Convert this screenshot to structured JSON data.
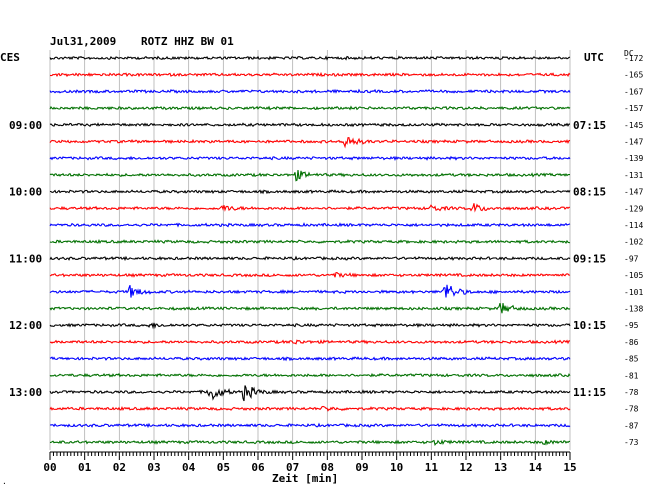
{
  "header": {
    "date": "Jul31,2009",
    "station": "ROTZ HHZ BW 01",
    "left_tz": "CES",
    "right_tz": "UTC",
    "dc_label": "DC"
  },
  "chart_data": {
    "type": "line",
    "xlabel": "Zeit [min]",
    "xlim": [
      0,
      15
    ],
    "x_ticks": [
      "00",
      "01",
      "02",
      "03",
      "04",
      "05",
      "06",
      "07",
      "08",
      "09",
      "10",
      "11",
      "12",
      "13",
      "14",
      "15"
    ],
    "trace_colors": [
      "#000000",
      "#ff0000",
      "#0000ff",
      "#007000"
    ],
    "left_hour_labels": [
      {
        "row": 4,
        "label": "09:00"
      },
      {
        "row": 8,
        "label": "10:00"
      },
      {
        "row": 12,
        "label": "11:00"
      },
      {
        "row": 16,
        "label": "12:00"
      },
      {
        "row": 20,
        "label": "13:00"
      }
    ],
    "right_hour_labels": [
      {
        "row": 4,
        "label": "07:15"
      },
      {
        "row": 8,
        "label": "08:15"
      },
      {
        "row": 12,
        "label": "09:15"
      },
      {
        "row": 16,
        "label": "10:15"
      },
      {
        "row": 20,
        "label": "11:15"
      }
    ],
    "dc_offsets": [
      "-172",
      "-165",
      "-167",
      "-157",
      "-145",
      "-147",
      "-139",
      "-131",
      "-147",
      "-129",
      "-114",
      "-102",
      "-97",
      "-105",
      "-101",
      "-138",
      "-95",
      "-86",
      "-85",
      "-81",
      "-78",
      "-78",
      "-87",
      "-73"
    ],
    "events": [
      {
        "row": 5,
        "minute": 8.5,
        "amplitude": 8
      },
      {
        "row": 7,
        "minute": 7.1,
        "amplitude": 5
      },
      {
        "row": 9,
        "minute": 5.0,
        "amplitude": 3
      },
      {
        "row": 9,
        "minute": 11.0,
        "amplitude": 3
      },
      {
        "row": 9,
        "minute": 12.2,
        "amplitude": 5
      },
      {
        "row": 13,
        "minute": 8.2,
        "amplitude": 2
      },
      {
        "row": 14,
        "minute": 2.3,
        "amplitude": 6
      },
      {
        "row": 14,
        "minute": 11.4,
        "amplitude": 11
      },
      {
        "row": 15,
        "minute": 13.0,
        "amplitude": 6
      },
      {
        "row": 16,
        "minute": 2.9,
        "amplitude": 2
      },
      {
        "row": 17,
        "minute": 7.0,
        "amplitude": 2
      },
      {
        "row": 20,
        "minute": 4.6,
        "amplitude": 11
      },
      {
        "row": 20,
        "minute": 5.6,
        "amplitude": 9
      },
      {
        "row": 21,
        "minute": 7.9,
        "amplitude": 2
      },
      {
        "row": 23,
        "minute": 11.1,
        "amplitude": 2
      },
      {
        "row": 23,
        "minute": 14.2,
        "amplitude": 2
      }
    ]
  }
}
